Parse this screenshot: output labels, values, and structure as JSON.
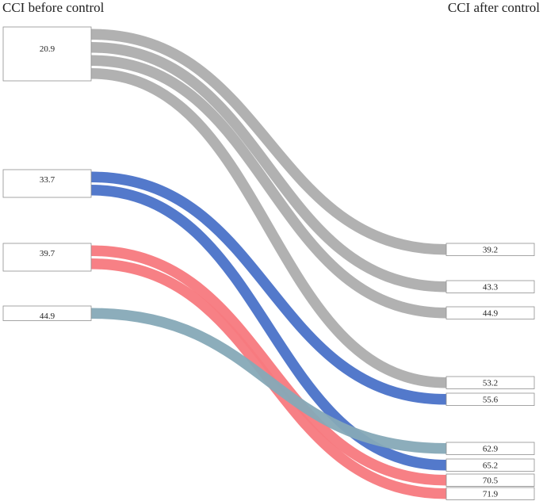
{
  "chart_data": {
    "type": "sankey",
    "left_title": "CCI before control",
    "right_title": "CCI after control",
    "colors": {
      "gray": "#adadad",
      "blue": "#4a72c8",
      "red": "#f7797e",
      "teal": "#86a9b7",
      "node_stroke": "#8f8f8f"
    },
    "sources": [
      {
        "label": "20.9",
        "color": "gray",
        "links": 4
      },
      {
        "label": "33.7",
        "color": "blue",
        "links": 2
      },
      {
        "label": "39.7",
        "color": "red",
        "links": 2
      },
      {
        "label": "44.9",
        "color": "teal",
        "links": 1
      }
    ],
    "targets": [
      "39.2",
      "43.3",
      "44.9",
      "53.2",
      "55.6",
      "62.9",
      "65.2",
      "70.5",
      "71.9"
    ],
    "links": [
      {
        "source": "20.9",
        "target": "39.2",
        "color": "gray"
      },
      {
        "source": "20.9",
        "target": "43.3",
        "color": "gray"
      },
      {
        "source": "20.9",
        "target": "44.9",
        "color": "gray"
      },
      {
        "source": "20.9",
        "target": "53.2",
        "color": "gray"
      },
      {
        "source": "33.7",
        "target": "55.6",
        "color": "blue"
      },
      {
        "source": "33.7",
        "target": "65.2",
        "color": "blue"
      },
      {
        "source": "39.7",
        "target": "70.5",
        "color": "red"
      },
      {
        "source": "39.7",
        "target": "71.9",
        "color": "red"
      },
      {
        "source": "44.9",
        "target": "62.9",
        "color": "teal"
      }
    ]
  }
}
